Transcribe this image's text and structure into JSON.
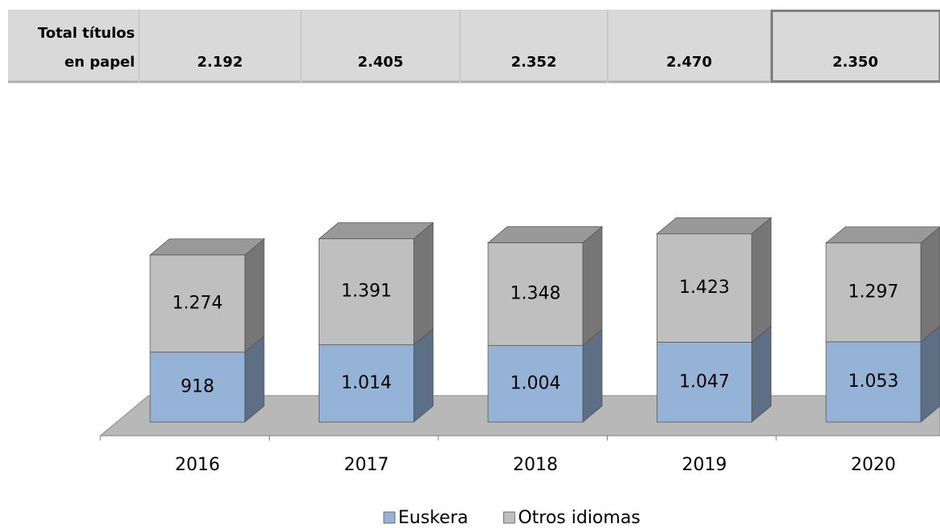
{
  "table": {
    "header": [
      "Total títulos",
      "en papel"
    ],
    "cells": [
      "2.192",
      "2.405",
      "2.352",
      "2.470",
      "2.350"
    ]
  },
  "chart_data": {
    "type": "bar",
    "stacked": true,
    "categories": [
      "2016",
      "2017",
      "2018",
      "2019",
      "2020"
    ],
    "series": [
      {
        "name": "Euskera",
        "color": "#95b3d7",
        "values": [
          918,
          1014,
          1004,
          1047,
          1053
        ],
        "value_labels": [
          "918",
          "1.014",
          "1.004",
          "1.047",
          "1.053"
        ]
      },
      {
        "name": "Otros idiomas",
        "color": "#bfbfbf",
        "values": [
          1274,
          1391,
          1348,
          1423,
          1297
        ],
        "value_labels": [
          "1.274",
          "1.391",
          "1.348",
          "1.423",
          "1.297"
        ]
      }
    ]
  }
}
